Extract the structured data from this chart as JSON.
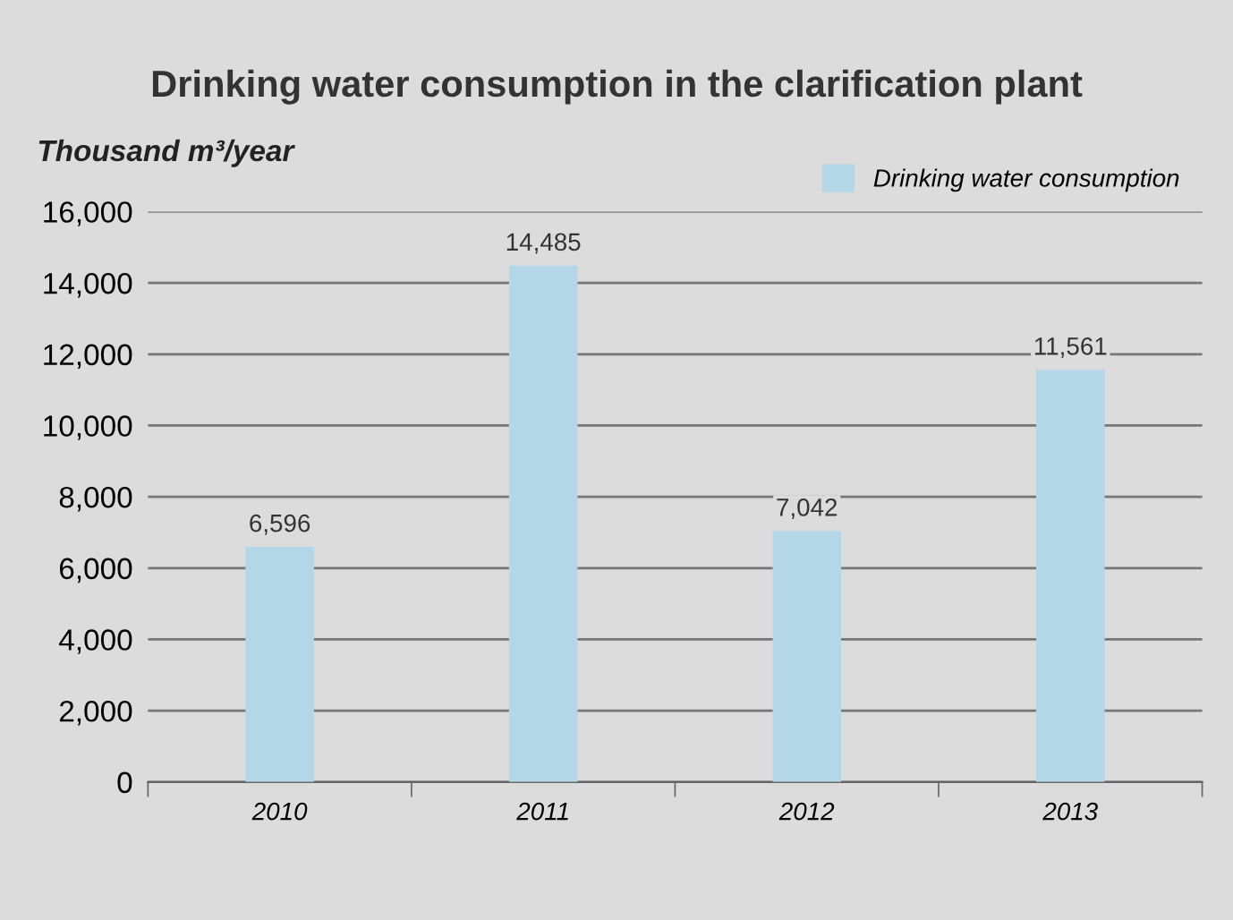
{
  "chart_data": {
    "type": "bar",
    "title": "Drinking water consumption in the clarification plant",
    "ylabel": "Thousand m³/year",
    "categories": [
      "2010",
      "2011",
      "2012",
      "2013"
    ],
    "series": [
      {
        "name": "Drinking water consumption",
        "color": "#b3d7e6",
        "values": [
          6596,
          14485,
          7042,
          11561
        ],
        "value_labels": [
          "6,596",
          "14,485",
          "7,042",
          "11,561"
        ]
      }
    ],
    "ylim": [
      0,
      16000
    ],
    "yticks": [
      0,
      {
        "value": 2000,
        "label": "2,000"
      },
      {
        "value": 4000,
        "label": "4,000"
      },
      {
        "value": 6000,
        "label": "6,000"
      },
      {
        "value": 8000,
        "label": "8,000"
      },
      {
        "value": 10000,
        "label": "10,000"
      },
      {
        "value": 12000,
        "label": "12,000"
      },
      {
        "value": 14000,
        "label": "14,000"
      },
      {
        "value": 16000,
        "label": "16,000"
      }
    ],
    "grid": "y",
    "legend": "top right"
  }
}
